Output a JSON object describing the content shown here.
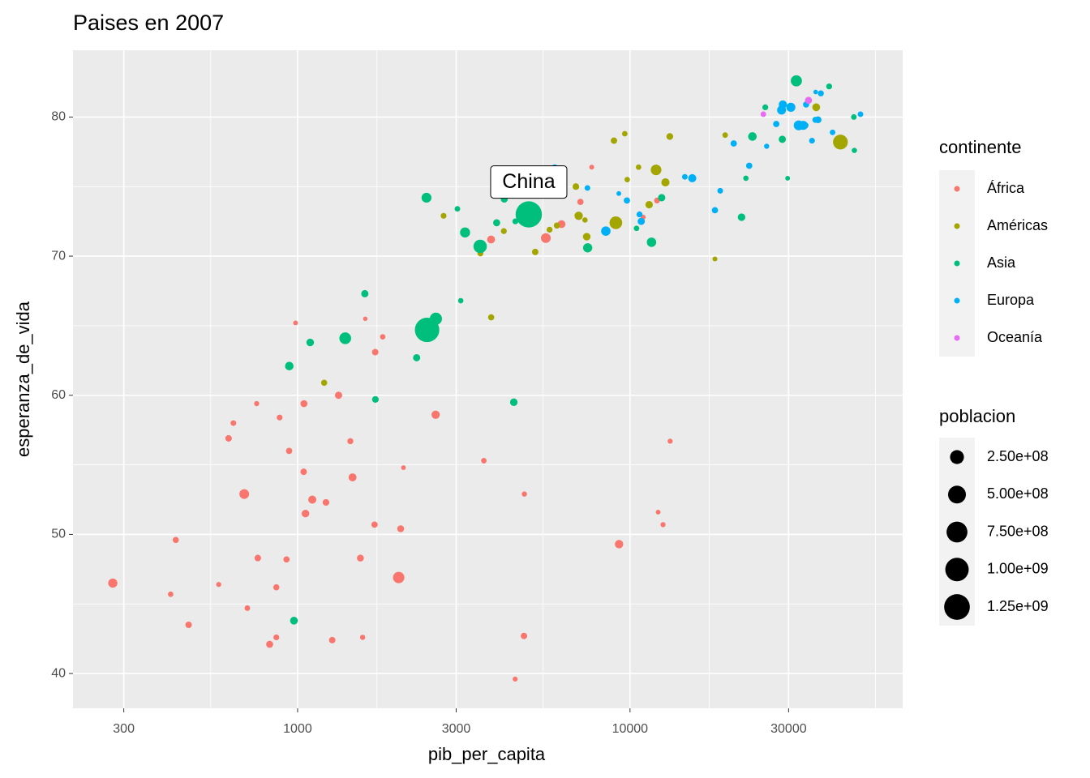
{
  "chart_data": {
    "type": "scatter",
    "title": "Paises en 2007",
    "x_label": "pib_per_capita",
    "y_label": "esperanza_de_vida",
    "xscale": "log",
    "grid": true,
    "xlim": [
      211,
      66100
    ],
    "ylim": [
      37.5,
      84.8
    ],
    "xticks": [
      300,
      1000,
      3000,
      10000,
      30000
    ],
    "yticks": [
      40,
      50,
      60,
      70,
      80
    ],
    "legend_title": "continente",
    "legend_position": "right",
    "size_legend": {
      "title": "poblacion",
      "breaks": [
        {
          "value": 250000000,
          "label": "2.50e+08"
        },
        {
          "value": 500000000,
          "label": "5.00e+08"
        },
        {
          "value": 750000000,
          "label": "7.50e+08"
        },
        {
          "value": 1000000000,
          "label": "1.00e+09"
        },
        {
          "value": 1250000000,
          "label": "1.25e+09"
        }
      ]
    },
    "annotations": [
      {
        "text": "China",
        "x": 4959,
        "y": 73.0
      }
    ],
    "series": [
      {
        "name": "África",
        "color": "#F8766D",
        "x": [
          6223,
          4797,
          1441,
          12570,
          1217,
          430,
          2042,
          706,
          1704,
          986,
          278,
          3633,
          1545,
          2082,
          5581,
          12154,
          641,
          691,
          13206,
          753,
          1328,
          943,
          579,
          1463,
          1569,
          415,
          12057,
          1045,
          759,
          1043,
          1803,
          10957,
          3820,
          824,
          4811,
          620,
          2014,
          7670,
          863,
          1598,
          1712,
          863,
          926,
          9270,
          2602,
          4513,
          1107,
          883,
          7093,
          1056,
          1271,
          470
        ],
        "values": [
          72.3,
          42.7,
          56.7,
          50.7,
          52.3,
          49.6,
          50.4,
          44.7,
          50.7,
          65.2,
          46.5,
          55.3,
          48.3,
          54.8,
          71.3,
          51.6,
          58.0,
          52.9,
          56.7,
          59.4,
          60.0,
          56.0,
          46.4,
          54.1,
          42.6,
          45.7,
          74.0,
          59.4,
          48.3,
          54.5,
          64.2,
          72.8,
          71.2,
          42.1,
          52.9,
          56.9,
          46.9,
          76.4,
          46.2,
          65.5,
          63.1,
          42.6,
          48.2,
          49.3,
          58.6,
          39.6,
          52.5,
          58.4,
          73.9,
          51.5,
          42.4,
          43.5
        ],
        "sizes": [
          33300000,
          12400000,
          8100000,
          1600000,
          14300000,
          8400000,
          17700000,
          4400000,
          10200000,
          700000,
          64600000,
          3800000,
          18000000,
          500000,
          80300000,
          550000,
          4900000,
          76500000,
          1450000,
          1700000,
          22900000,
          9900000,
          1500000,
          35600000,
          2000000,
          3200000,
          6000000,
          19200000,
          13300000,
          12000000,
          3300000,
          1250000,
          33800000,
          20000000,
          2060000,
          12900000,
          135000000,
          800000,
          8900000,
          200000,
          12300000,
          6100000,
          9100000,
          44000000,
          42300000,
          1100000,
          38100000,
          5700000,
          10300000,
          29200000,
          11700000,
          12300000
        ]
      },
      {
        "name": "Américas",
        "color": "#A3A500",
        "x": [
          12779,
          3822,
          9066,
          36319,
          13172,
          7007,
          9645,
          8948,
          6025,
          6873,
          5728,
          5186,
          1202,
          3548,
          7321,
          11978,
          2749,
          9809,
          4173,
          7409,
          19329,
          18009,
          42952,
          10611,
          11416
        ],
        "values": [
          75.3,
          65.6,
          72.4,
          80.7,
          78.6,
          72.9,
          78.8,
          78.3,
          72.2,
          75.0,
          71.9,
          70.3,
          60.9,
          70.2,
          72.6,
          76.2,
          72.9,
          75.5,
          71.8,
          71.4,
          78.7,
          69.8,
          78.2,
          76.4,
          73.7
        ],
        "sizes": [
          40300000,
          9100000,
          190000000,
          33400000,
          16300000,
          44200000,
          4100000,
          11400000,
          9300000,
          13800000,
          6900000,
          12600000,
          8500000,
          7500000,
          2800000,
          108700000,
          5700000,
          3200000,
          6700000,
          28700000,
          3900000,
          1060000,
          301000000,
          3400000,
          26100000
        ]
      },
      {
        "name": "Asia",
        "color": "#00BF7D",
        "x": [
          975,
          29796,
          1391,
          1714,
          4959,
          39725,
          2452,
          3541,
          11606,
          4471,
          25523,
          31656,
          4519,
          1593,
          23348,
          47307,
          10461,
          12452,
          3096,
          944,
          1091,
          22316,
          2606,
          3190,
          21655,
          47143,
          3970,
          4185,
          28718,
          7458,
          2442,
          3025,
          2281
        ],
        "values": [
          43.8,
          75.6,
          64.1,
          59.7,
          73.0,
          82.2,
          64.7,
          70.7,
          71.0,
          59.5,
          80.7,
          82.6,
          72.5,
          67.3,
          78.6,
          77.6,
          72.0,
          74.2,
          66.8,
          62.1,
          63.8,
          75.6,
          65.5,
          71.7,
          72.8,
          80.0,
          72.4,
          74.1,
          78.4,
          70.6,
          74.2,
          73.4,
          62.7
        ],
        "sizes": [
          31900000,
          700000,
          150000000,
          14100000,
          1318700000,
          6980000,
          1110000000,
          223500000,
          69500000,
          27500000,
          6400000,
          127500000,
          6050000,
          23300000,
          49000000,
          2500000,
          3900000,
          24800000,
          2900000,
          47800000,
          28900000,
          3200000,
          169000000,
          91100000,
          27600000,
          4600000,
          20400000,
          19300000,
          23200000,
          65100000,
          85300000,
          4000000,
          22200000
        ]
      },
      {
        "name": "Europa",
        "color": "#00B0F6",
        "x": [
          5937,
          36126,
          33693,
          7446,
          10681,
          14619,
          22833,
          35278,
          33207,
          30470,
          32170,
          27538,
          18009,
          36181,
          40676,
          28570,
          9254,
          36798,
          49357,
          15390,
          20510,
          10808,
          9787,
          18678,
          25768,
          28821,
          33860,
          37506,
          8458,
          33203
        ],
        "values": [
          76.4,
          79.8,
          79.4,
          74.9,
          73.0,
          75.7,
          76.5,
          78.3,
          79.3,
          80.7,
          79.4,
          79.5,
          73.3,
          81.8,
          78.9,
          80.5,
          74.5,
          79.8,
          80.2,
          75.6,
          78.1,
          72.5,
          74.0,
          74.7,
          77.9,
          80.9,
          80.9,
          81.7,
          71.8,
          79.4
        ],
        "sizes": [
          3600000,
          8200000,
          10400000,
          4600000,
          7300000,
          4500000,
          10200000,
          5500000,
          5200000,
          61100000,
          82400000,
          10700000,
          9960000,
          300000,
          4100000,
          58100000,
          680000,
          16600000,
          4600000,
          38500000,
          10600000,
          22300000,
          10200000,
          5400000,
          2000000,
          40400000,
          9000000,
          7550000,
          71200000,
          60800000
        ]
      },
      {
        "name": "Oceanía",
        "color": "#E76BF3",
        "x": [
          34435,
          25185
        ],
        "values": [
          81.2,
          80.2
        ],
        "sizes": [
          20400000,
          4100000
        ]
      }
    ]
  }
}
